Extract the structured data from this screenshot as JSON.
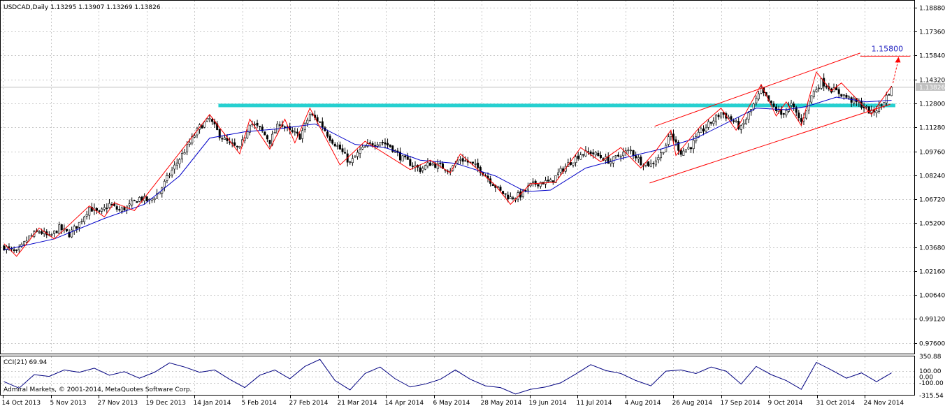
{
  "header": {
    "symbol_line": "USDCAD,Daily  1.13295 1.13907 1.13269 1.13826"
  },
  "footer": {
    "copyright": "Admiral Markets, © 2001-2014, MetaQuotes Software Corp."
  },
  "colors": {
    "background": "#ffffff",
    "grid": "#c8c8c8",
    "candle": "#000000",
    "bull_fill": "#ffffff",
    "bear_fill": "#000000",
    "zigzag": "#ff0000",
    "moving_average": "#0000c8",
    "channel": "#ff0000",
    "resistance": "#00c8c8",
    "target_label": "#2020c0",
    "cci_line": "#000080"
  },
  "chart_data": [
    {
      "type": "candlestick",
      "title": "USDCAD,Daily",
      "ohlc_last": {
        "open": 1.13295,
        "high": 1.13907,
        "low": 1.13269,
        "close": 1.13826
      },
      "current_price_label": "1.13826",
      "ylim": [
        0.9688,
        1.1932
      ],
      "y_ticks": [
        "1.18880",
        "1.17360",
        "1.15840",
        "1.14320",
        "1.12800",
        "1.11280",
        "1.09760",
        "1.08240",
        "1.06720",
        "1.05200",
        "1.03680",
        "1.02160",
        "1.00640",
        "0.99120",
        "0.97600"
      ],
      "x_labels": [
        "14 Oct 2013",
        "5 Nov 2013",
        "27 Nov 2013",
        "19 Dec 2013",
        "14 Jan 2014",
        "5 Feb 2014",
        "27 Feb 2014",
        "21 Mar 2014",
        "14 Apr 2014",
        "6 May 2014",
        "28 May 2014",
        "19 Jun 2014",
        "11 Jul 2014",
        "4 Aug 2014",
        "26 Aug 2014",
        "17 Sep 2014",
        "9 Oct 2014",
        "31 Oct 2014",
        "24 Nov 2014"
      ],
      "close_path": [
        [
          0,
          1.037
        ],
        [
          5,
          1.033
        ],
        [
          10,
          1.043
        ],
        [
          14,
          1.047
        ],
        [
          18,
          1.043
        ],
        [
          22,
          1.049
        ],
        [
          26,
          1.045
        ],
        [
          30,
          1.052
        ],
        [
          34,
          1.062
        ],
        [
          38,
          1.058
        ],
        [
          42,
          1.064
        ],
        [
          46,
          1.06
        ],
        [
          50,
          1.063
        ],
        [
          54,
          1.068
        ],
        [
          58,
          1.066
        ],
        [
          62,
          1.072
        ],
        [
          66,
          1.083
        ],
        [
          70,
          1.093
        ],
        [
          74,
          1.103
        ],
        [
          78,
          1.113
        ],
        [
          82,
          1.118
        ],
        [
          86,
          1.108
        ],
        [
          90,
          1.102
        ],
        [
          94,
          1.099
        ],
        [
          98,
          1.116
        ],
        [
          102,
          1.112
        ],
        [
          106,
          1.104
        ],
        [
          110,
          1.116
        ],
        [
          114,
          1.11
        ],
        [
          118,
          1.107
        ],
        [
          122,
          1.121
        ],
        [
          126,
          1.116
        ],
        [
          130,
          1.106
        ],
        [
          134,
          1.099
        ],
        [
          138,
          1.09
        ],
        [
          142,
          1.098
        ],
        [
          146,
          1.102
        ],
        [
          150,
          1.104
        ],
        [
          154,
          1.101
        ],
        [
          158,
          1.094
        ],
        [
          162,
          1.09
        ],
        [
          166,
          1.086
        ],
        [
          170,
          1.09
        ],
        [
          174,
          1.088
        ],
        [
          178,
          1.086
        ],
        [
          182,
          1.093
        ],
        [
          186,
          1.09
        ],
        [
          190,
          1.086
        ],
        [
          194,
          1.079
        ],
        [
          198,
          1.072
        ],
        [
          202,
          1.068
        ],
        [
          206,
          1.07
        ],
        [
          210,
          1.076
        ],
        [
          214,
          1.078
        ],
        [
          218,
          1.078
        ],
        [
          222,
          1.085
        ],
        [
          226,
          1.091
        ],
        [
          230,
          1.096
        ],
        [
          234,
          1.097
        ],
        [
          238,
          1.094
        ],
        [
          242,
          1.091
        ],
        [
          246,
          1.096
        ],
        [
          250,
          1.098
        ],
        [
          254,
          1.091
        ],
        [
          258,
          1.089
        ],
        [
          262,
          1.096
        ],
        [
          266,
          1.108
        ],
        [
          270,
          1.097
        ],
        [
          274,
          1.101
        ],
        [
          278,
          1.11
        ],
        [
          282,
          1.116
        ],
        [
          286,
          1.122
        ],
        [
          290,
          1.118
        ],
        [
          294,
          1.112
        ],
        [
          298,
          1.124
        ],
        [
          302,
          1.136
        ],
        [
          306,
          1.127
        ],
        [
          310,
          1.121
        ],
        [
          314,
          1.127
        ],
        [
          318,
          1.116
        ],
        [
          322,
          1.133
        ],
        [
          326,
          1.142
        ],
        [
          330,
          1.137
        ],
        [
          334,
          1.134
        ],
        [
          338,
          1.13
        ],
        [
          342,
          1.127
        ],
        [
          346,
          1.122
        ],
        [
          350,
          1.127
        ],
        [
          354,
          1.138
        ]
      ],
      "zigzag": [
        [
          0,
          1.039
        ],
        [
          5,
          1.031
        ],
        [
          14,
          1.049
        ],
        [
          20,
          1.042
        ],
        [
          34,
          1.063
        ],
        [
          40,
          1.056
        ],
        [
          44,
          1.065
        ],
        [
          52,
          1.06
        ],
        [
          82,
          1.121
        ],
        [
          94,
          1.096
        ],
        [
          98,
          1.118
        ],
        [
          106,
          1.099
        ],
        [
          112,
          1.118
        ],
        [
          116,
          1.103
        ],
        [
          122,
          1.125
        ],
        [
          134,
          1.089
        ],
        [
          144,
          1.104
        ],
        [
          162,
          1.086
        ],
        [
          170,
          1.092
        ],
        [
          178,
          1.084
        ],
        [
          182,
          1.096
        ],
        [
          196,
          1.076
        ],
        [
          202,
          1.064
        ],
        [
          210,
          1.077
        ],
        [
          220,
          1.078
        ],
        [
          230,
          1.1
        ],
        [
          238,
          1.091
        ],
        [
          246,
          1.1
        ],
        [
          254,
          1.087
        ],
        [
          260,
          1.098
        ],
        [
          266,
          1.111
        ],
        [
          268,
          1.095
        ],
        [
          278,
          1.114
        ],
        [
          286,
          1.125
        ],
        [
          292,
          1.111
        ],
        [
          302,
          1.14
        ],
        [
          308,
          1.12
        ],
        [
          312,
          1.129
        ],
        [
          318,
          1.114
        ],
        [
          324,
          1.148
        ],
        [
          330,
          1.136
        ],
        [
          334,
          1.141
        ],
        [
          346,
          1.121
        ],
        [
          354,
          1.139
        ]
      ],
      "moving_average": [
        [
          0,
          1.035
        ],
        [
          20,
          1.042
        ],
        [
          40,
          1.055
        ],
        [
          56,
          1.064
        ],
        [
          70,
          1.082
        ],
        [
          82,
          1.106
        ],
        [
          96,
          1.11
        ],
        [
          110,
          1.112
        ],
        [
          124,
          1.115
        ],
        [
          140,
          1.102
        ],
        [
          152,
          1.1
        ],
        [
          166,
          1.092
        ],
        [
          180,
          1.09
        ],
        [
          196,
          1.082
        ],
        [
          208,
          1.072
        ],
        [
          218,
          1.073
        ],
        [
          232,
          1.087
        ],
        [
          246,
          1.093
        ],
        [
          262,
          1.099
        ],
        [
          276,
          1.106
        ],
        [
          290,
          1.117
        ],
        [
          300,
          1.125
        ],
        [
          312,
          1.124
        ],
        [
          320,
          1.126
        ],
        [
          332,
          1.132
        ],
        [
          344,
          1.129
        ],
        [
          354,
          1.13
        ]
      ],
      "resistance_level": {
        "y": 1.1265,
        "x_start": 86,
        "x_end": 356
      },
      "channel_lines": [
        {
          "x1": 260,
          "y1": 1.1135,
          "x2": 342,
          "y2": 1.16
        },
        {
          "x1": 258,
          "y1": 1.0775,
          "x2": 354,
          "y2": 1.1275
        }
      ],
      "target": {
        "value": 1.158,
        "label": "1.15800",
        "x_start": 342,
        "x_end": 362
      }
    },
    {
      "type": "line",
      "title": "CCI(21) 69.94",
      "ylim": [
        -315.54,
        350.88
      ],
      "y_ticks": [
        "350.88",
        "100.00",
        "0.00",
        "-100.00",
        "-315.54"
      ],
      "levels": [
        100,
        0,
        -100
      ],
      "values": [
        [
          0,
          -80
        ],
        [
          6,
          -190
        ],
        [
          12,
          40
        ],
        [
          18,
          10
        ],
        [
          24,
          120
        ],
        [
          30,
          80
        ],
        [
          36,
          150
        ],
        [
          42,
          30
        ],
        [
          48,
          90
        ],
        [
          54,
          -20
        ],
        [
          60,
          80
        ],
        [
          66,
          240
        ],
        [
          72,
          170
        ],
        [
          78,
          80
        ],
        [
          84,
          120
        ],
        [
          90,
          -40
        ],
        [
          96,
          -180
        ],
        [
          102,
          30
        ],
        [
          108,
          120
        ],
        [
          114,
          -30
        ],
        [
          120,
          180
        ],
        [
          126,
          300
        ],
        [
          132,
          -60
        ],
        [
          138,
          -220
        ],
        [
          144,
          60
        ],
        [
          150,
          170
        ],
        [
          156,
          -30
        ],
        [
          162,
          -170
        ],
        [
          168,
          -120
        ],
        [
          174,
          -40
        ],
        [
          180,
          120
        ],
        [
          186,
          -40
        ],
        [
          192,
          -150
        ],
        [
          198,
          -180
        ],
        [
          204,
          -290
        ],
        [
          210,
          -210
        ],
        [
          216,
          -170
        ],
        [
          222,
          -100
        ],
        [
          228,
          50
        ],
        [
          234,
          210
        ],
        [
          240,
          110
        ],
        [
          246,
          60
        ],
        [
          252,
          -60
        ],
        [
          258,
          -150
        ],
        [
          264,
          100
        ],
        [
          270,
          120
        ],
        [
          276,
          60
        ],
        [
          282,
          170
        ],
        [
          288,
          100
        ],
        [
          294,
          -120
        ],
        [
          300,
          180
        ],
        [
          306,
          40
        ],
        [
          312,
          -60
        ],
        [
          318,
          -210
        ],
        [
          324,
          250
        ],
        [
          330,
          120
        ],
        [
          336,
          -20
        ],
        [
          342,
          70
        ],
        [
          348,
          -80
        ],
        [
          354,
          69.94
        ]
      ]
    }
  ]
}
